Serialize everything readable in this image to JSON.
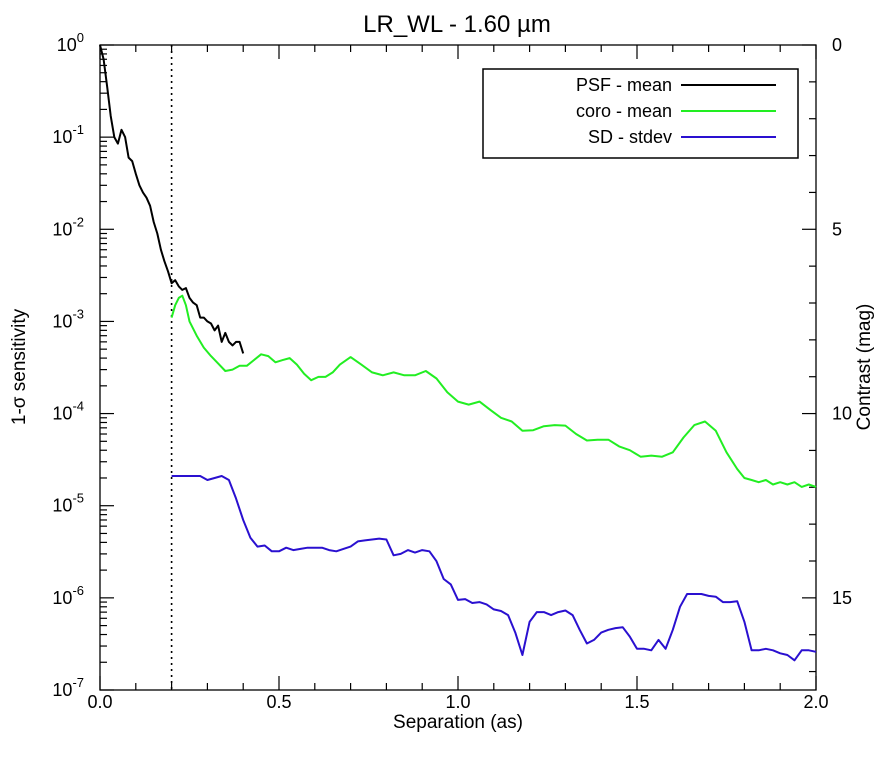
{
  "chart_data": {
    "type": "line",
    "title": "LR_WL - 1.60 µm",
    "xlabel": "Separation (as)",
    "ylabel": "1-σ sensitivity",
    "y2label": "Contrast (mag)",
    "xlim": [
      0.0,
      2.0
    ],
    "ylim": [
      1e-07,
      1.0
    ],
    "yscale": "log",
    "y2lim": [
      0,
      17.5
    ],
    "xticks": [
      "0.0",
      "0.5",
      "1.0",
      "1.5",
      "2.0"
    ],
    "yticks": [
      {
        "base": "10",
        "exp": "0"
      },
      {
        "base": "10",
        "exp": "-1"
      },
      {
        "base": "10",
        "exp": "-2"
      },
      {
        "base": "10",
        "exp": "-3"
      },
      {
        "base": "10",
        "exp": "-4"
      },
      {
        "base": "10",
        "exp": "-5"
      },
      {
        "base": "10",
        "exp": "-6"
      },
      {
        "base": "10",
        "exp": "-7"
      }
    ],
    "y2ticks": [
      "0",
      "5",
      "10",
      "15"
    ],
    "vline_x": 0.2,
    "legend_position": "top-right",
    "series": [
      {
        "name": "PSF - mean",
        "color": "#000000",
        "x": [
          0.0,
          0.01,
          0.02,
          0.03,
          0.04,
          0.05,
          0.06,
          0.07,
          0.08,
          0.09,
          0.1,
          0.11,
          0.12,
          0.13,
          0.14,
          0.15,
          0.16,
          0.17,
          0.18,
          0.19,
          0.2,
          0.21,
          0.22,
          0.23,
          0.24,
          0.25,
          0.26,
          0.27,
          0.28,
          0.29,
          0.3,
          0.31,
          0.32,
          0.33,
          0.34,
          0.35,
          0.36,
          0.37,
          0.38,
          0.39,
          0.4
        ],
        "y": [
          1.0,
          0.7,
          0.35,
          0.17,
          0.1,
          0.085,
          0.12,
          0.1,
          0.06,
          0.055,
          0.04,
          0.03,
          0.025,
          0.022,
          0.018,
          0.012,
          0.009,
          0.006,
          0.0045,
          0.0035,
          0.0026,
          0.0028,
          0.0024,
          0.0022,
          0.0023,
          0.0018,
          0.0016,
          0.0015,
          0.0011,
          0.0011,
          0.001,
          0.00095,
          0.0008,
          0.0009,
          0.0006,
          0.00075,
          0.0006,
          0.00055,
          0.0006,
          0.0006,
          0.00045
        ]
      },
      {
        "name": "coro - mean",
        "color": "#22ee22",
        "x": [
          0.2,
          0.21,
          0.22,
          0.23,
          0.24,
          0.25,
          0.27,
          0.29,
          0.31,
          0.33,
          0.35,
          0.37,
          0.39,
          0.41,
          0.43,
          0.45,
          0.47,
          0.49,
          0.51,
          0.53,
          0.55,
          0.57,
          0.59,
          0.61,
          0.63,
          0.65,
          0.67,
          0.7,
          0.73,
          0.76,
          0.79,
          0.82,
          0.85,
          0.88,
          0.91,
          0.94,
          0.97,
          1.0,
          1.03,
          1.06,
          1.09,
          1.12,
          1.15,
          1.18,
          1.21,
          1.24,
          1.27,
          1.3,
          1.33,
          1.36,
          1.39,
          1.42,
          1.45,
          1.48,
          1.51,
          1.54,
          1.57,
          1.6,
          1.63,
          1.66,
          1.69,
          1.72,
          1.75,
          1.78,
          1.8,
          1.82,
          1.84,
          1.86,
          1.88,
          1.9,
          1.92,
          1.94,
          1.96,
          1.98,
          2.0
        ],
        "y": [
          0.0011,
          0.0015,
          0.0018,
          0.0019,
          0.0015,
          0.001,
          0.0007,
          0.00052,
          0.00042,
          0.00035,
          0.00029,
          0.0003,
          0.00033,
          0.00033,
          0.00038,
          0.00044,
          0.00042,
          0.00036,
          0.00038,
          0.0004,
          0.00034,
          0.00027,
          0.00023,
          0.00025,
          0.00025,
          0.00028,
          0.00034,
          0.00041,
          0.00034,
          0.00028,
          0.00026,
          0.00028,
          0.00026,
          0.00026,
          0.00029,
          0.00024,
          0.00017,
          0.000135,
          0.000125,
          0.000135,
          0.00011,
          9e-05,
          8.2e-05,
          6.5e-05,
          6.6e-05,
          7.3e-05,
          7.5e-05,
          7.4e-05,
          6e-05,
          5.1e-05,
          5.2e-05,
          5.2e-05,
          4.4e-05,
          4e-05,
          3.4e-05,
          3.5e-05,
          3.4e-05,
          3.8e-05,
          5.5e-05,
          7.5e-05,
          8.2e-05,
          6.5e-05,
          3.8e-05,
          2.5e-05,
          2e-05,
          1.9e-05,
          1.8e-05,
          1.9e-05,
          1.7e-05,
          1.8e-05,
          1.7e-05,
          1.8e-05,
          1.6e-05,
          1.7e-05,
          1.6e-05
        ]
      },
      {
        "name": "SD - stdev",
        "color": "#2a10d0",
        "x": [
          0.2,
          0.22,
          0.24,
          0.26,
          0.28,
          0.3,
          0.32,
          0.34,
          0.36,
          0.38,
          0.4,
          0.42,
          0.44,
          0.46,
          0.48,
          0.5,
          0.52,
          0.54,
          0.56,
          0.58,
          0.6,
          0.62,
          0.64,
          0.66,
          0.68,
          0.7,
          0.72,
          0.74,
          0.76,
          0.78,
          0.8,
          0.82,
          0.84,
          0.86,
          0.88,
          0.9,
          0.92,
          0.94,
          0.96,
          0.98,
          1.0,
          1.02,
          1.04,
          1.06,
          1.08,
          1.1,
          1.12,
          1.14,
          1.16,
          1.18,
          1.2,
          1.22,
          1.24,
          1.26,
          1.28,
          1.3,
          1.32,
          1.34,
          1.36,
          1.38,
          1.4,
          1.42,
          1.44,
          1.46,
          1.48,
          1.5,
          1.52,
          1.54,
          1.56,
          1.58,
          1.6,
          1.62,
          1.64,
          1.66,
          1.68,
          1.7,
          1.72,
          1.74,
          1.76,
          1.78,
          1.8,
          1.82,
          1.84,
          1.86,
          1.88,
          1.9,
          1.92,
          1.94,
          1.96,
          1.98,
          2.0
        ],
        "y": [
          2.1e-05,
          2.1e-05,
          2.1e-05,
          2.1e-05,
          2.1e-05,
          1.9e-05,
          2e-05,
          2.1e-05,
          1.9e-05,
          1.2e-05,
          7e-06,
          4.5e-06,
          3.6e-06,
          3.7e-06,
          3.2e-06,
          3.2e-06,
          3.5e-06,
          3.3e-06,
          3.4e-06,
          3.5e-06,
          3.5e-06,
          3.5e-06,
          3.3e-06,
          3.2e-06,
          3.4e-06,
          3.6e-06,
          4.1e-06,
          4.2e-06,
          4.3e-06,
          4.4e-06,
          4.3e-06,
          2.9e-06,
          3e-06,
          3.3e-06,
          3.1e-06,
          3.3e-06,
          3.2e-06,
          2.5e-06,
          1.6e-06,
          1.4e-06,
          9.5e-07,
          9.7e-07,
          8.8e-07,
          9e-07,
          8.5e-07,
          7.5e-07,
          7.2e-07,
          6.5e-07,
          4.2e-07,
          2.4e-07,
          5.5e-07,
          7e-07,
          7e-07,
          6.5e-07,
          7e-07,
          7.3e-07,
          6.5e-07,
          4.5e-07,
          3.2e-07,
          3.5e-07,
          4.2e-07,
          4.5e-07,
          4.7e-07,
          4.8e-07,
          3.8e-07,
          2.8e-07,
          2.8e-07,
          2.7e-07,
          3.5e-07,
          2.8e-07,
          4.5e-07,
          8e-07,
          1.1e-06,
          1.1e-06,
          1.1e-06,
          1.05e-06,
          1.03e-06,
          9e-07,
          9e-07,
          9.2e-07,
          5.5e-07,
          2.7e-07,
          2.7e-07,
          2.8e-07,
          2.7e-07,
          2.5e-07,
          2.4e-07,
          2.1e-07,
          2.7e-07,
          2.7e-07,
          2.6e-07
        ]
      }
    ]
  }
}
